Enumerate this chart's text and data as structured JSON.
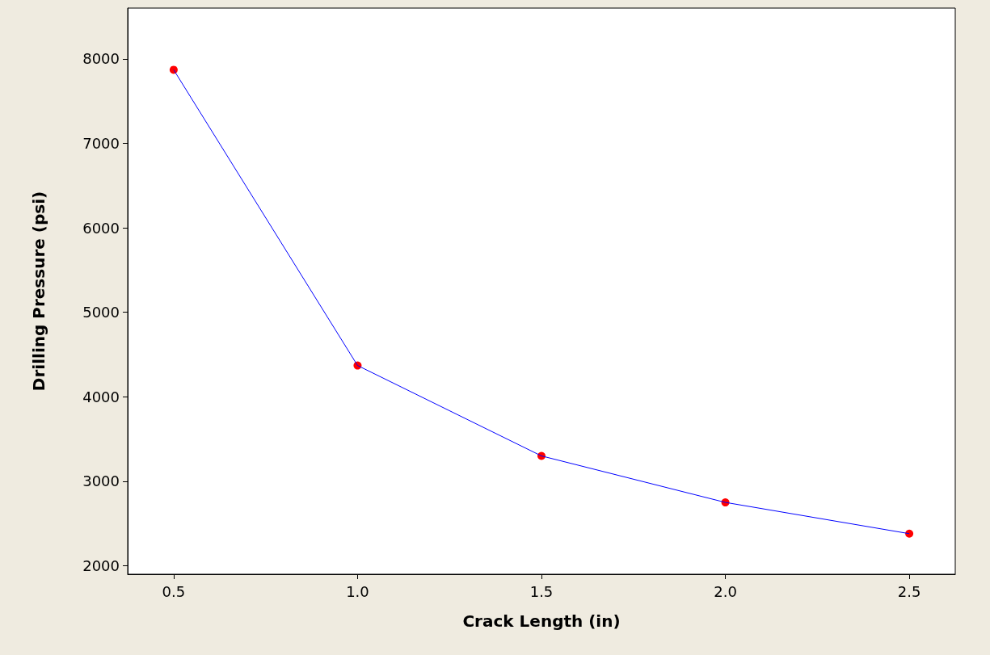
{
  "chart_data": {
    "type": "line",
    "xlabel": "Crack Length (in)",
    "ylabel": "Drilling Pressure (psi)",
    "x": [
      0.5,
      1.0,
      1.5,
      2.0,
      2.5
    ],
    "series": [
      {
        "color": "#0000ff",
        "marker": "none",
        "values": [
          7870,
          4370,
          3300,
          2750,
          2380
        ]
      },
      {
        "type": "scatter",
        "color": "#ff0000",
        "marker": "circle",
        "values": [
          7870,
          4370,
          3300,
          2750,
          2380
        ]
      }
    ],
    "xlim": [
      0.375,
      2.625
    ],
    "xticks": [
      {
        "value": 0.5,
        "label": "0.5"
      },
      {
        "value": 1.0,
        "label": "1.0"
      },
      {
        "value": 1.5,
        "label": "1.5"
      },
      {
        "value": 2.0,
        "label": "2.0"
      },
      {
        "value": 2.5,
        "label": "2.5"
      }
    ],
    "ylim": [
      1900,
      8600
    ],
    "yticks": [
      2000,
      3000,
      4000,
      5000,
      6000,
      7000,
      8000
    ],
    "grid": false
  }
}
